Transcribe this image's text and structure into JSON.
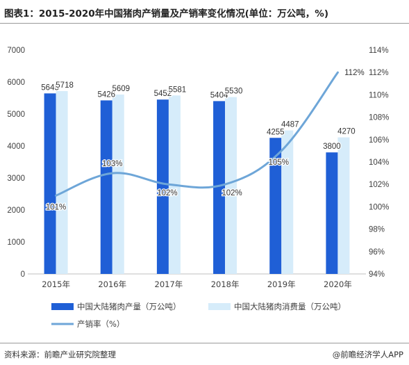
{
  "header": {
    "title": "图表1：2015-2020年中国猪肉产销量及产销率变化情况(单位：万公吨，%)"
  },
  "footer": {
    "source": "资料来源：前瞻产业研究院整理",
    "credit": "@前瞻经济学人APP"
  },
  "colors": {
    "production": "#1f5fd6",
    "consumption": "#d6ecfa",
    "rate": "#6ea6d8",
    "axis": "#bfbfbf",
    "text": "#404040"
  },
  "chart_data": {
    "type": "bar",
    "categories": [
      "2015年",
      "2016年",
      "2017年",
      "2018年",
      "2019年",
      "2020年"
    ],
    "series": [
      {
        "name": "中国大陆猪肉产量（万公吨）",
        "type": "bar",
        "axis": "left",
        "values": [
          5645,
          5426,
          5452,
          5404,
          4255,
          3800
        ],
        "labels": [
          "5645",
          "5426",
          "5452",
          "5404",
          "4255",
          "3800"
        ]
      },
      {
        "name": "中国大陆猪肉消费量（万公吨）",
        "type": "bar",
        "axis": "left",
        "values": [
          5718,
          5609,
          5581,
          5530,
          4487,
          4270
        ],
        "labels": [
          "5718",
          "5609",
          "5581",
          "5530",
          "4487",
          "4270"
        ]
      },
      {
        "name": "产销率（%）",
        "type": "line",
        "axis": "right",
        "values": [
          101,
          103,
          102,
          102,
          105,
          112
        ],
        "labels": [
          "101%",
          "103%",
          "102%",
          "102%",
          "105%",
          "112%"
        ]
      }
    ],
    "y_left": {
      "min": 0,
      "max": 7000,
      "ticks": [
        0,
        1000,
        2000,
        3000,
        4000,
        5000,
        6000,
        7000
      ],
      "tick_labels": [
        "0",
        "1000",
        "2000",
        "3000",
        "4000",
        "5000",
        "6000",
        "7000"
      ]
    },
    "y_right": {
      "min": 94,
      "max": 114,
      "ticks": [
        94,
        96,
        98,
        100,
        102,
        104,
        106,
        108,
        110,
        112,
        114
      ],
      "tick_labels": [
        "94%",
        "96%",
        "98%",
        "100%",
        "102%",
        "104%",
        "106%",
        "108%",
        "110%",
        "112%",
        "114%"
      ]
    },
    "curve_smoothing": "smooth",
    "grid": false,
    "legend": "bottom"
  }
}
